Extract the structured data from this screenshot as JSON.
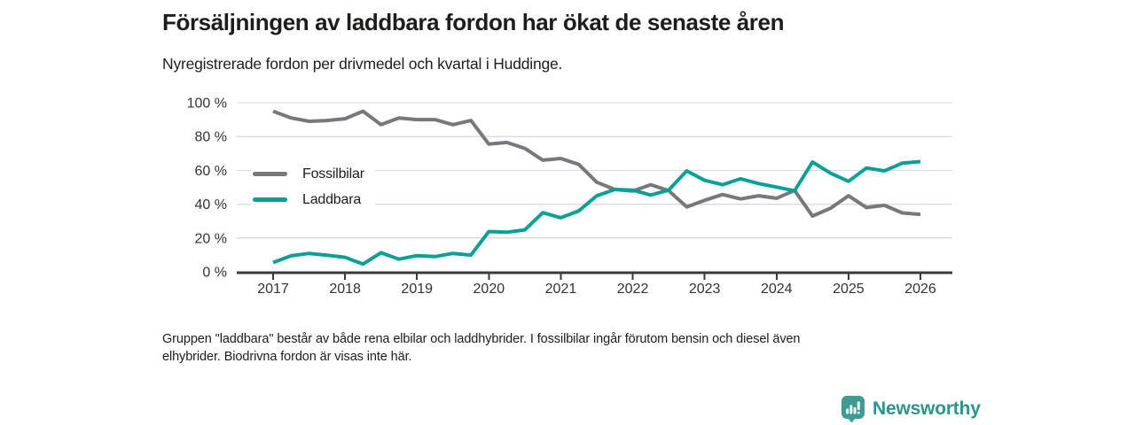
{
  "header": {
    "title": "Försäljningen av laddbara fordon har ökat de senaste åren",
    "subtitle": "Nyregistrerade fordon per drivmedel och kvartal i Huddinge."
  },
  "chart_data": {
    "type": "line",
    "title": "Försäljningen av laddbara fordon har ökat de senaste åren",
    "subtitle": "Nyregistrerade fordon per drivmedel och kvartal i Huddinge.",
    "xlabel": "",
    "ylabel": "",
    "ylim": [
      0,
      100
    ],
    "grid": "horizontal",
    "legend_position": "inside-upper-left",
    "x_tick_labels": [
      "2017",
      "2018",
      "2019",
      "2020",
      "2021",
      "2022",
      "2023",
      "2024",
      "2025",
      "2026"
    ],
    "y_tick_labels": [
      "0 %",
      "20 %",
      "40 %",
      "60 %",
      "80 %",
      "100 %"
    ],
    "quarters": [
      "2017 Q1",
      "2017 Q2",
      "2017 Q3",
      "2017 Q4",
      "2018 Q1",
      "2018 Q2",
      "2018 Q3",
      "2018 Q4",
      "2019 Q1",
      "2019 Q2",
      "2019 Q3",
      "2019 Q4",
      "2020 Q1",
      "2020 Q2",
      "2020 Q3",
      "2020 Q4",
      "2021 Q1",
      "2021 Q2",
      "2021 Q3",
      "2021 Q4",
      "2022 Q1",
      "2022 Q2",
      "2022 Q3",
      "2022 Q4",
      "2023 Q1",
      "2023 Q2",
      "2023 Q3",
      "2023 Q4",
      "2024 Q1",
      "2024 Q2",
      "2024 Q3",
      "2024 Q4",
      "2025 Q1",
      "2025 Q2",
      "2025 Q3",
      "2025 Q4",
      "2026 Q1"
    ],
    "unit": "%",
    "series": [
      {
        "name": "Fossilbilar",
        "color": "#77787b",
        "values": [
          95,
          91,
          89,
          89.5,
          90.5,
          95,
          87,
          91,
          90,
          90,
          87,
          89.5,
          75.5,
          76.5,
          73,
          66,
          67,
          63.5,
          53,
          48.7,
          47.8,
          51.5,
          48,
          38.4,
          42.3,
          45.7,
          43.1,
          45,
          43.5,
          48.1,
          33,
          37.6,
          45,
          38,
          39.3,
          34.8,
          34
        ]
      },
      {
        "name": "Laddbara",
        "color": "#0aa096",
        "values": [
          5.5,
          9.5,
          10.9,
          9.8,
          8.6,
          4.6,
          11.3,
          7.5,
          9.6,
          9,
          10.9,
          9.9,
          23.8,
          23.4,
          24.8,
          35,
          32,
          36,
          45,
          48.7,
          48.3,
          45.4,
          48.3,
          59.7,
          54.1,
          51.5,
          55,
          52.2,
          50.1,
          47.9,
          64.9,
          58.3,
          53.5,
          61.4,
          59.7,
          64.3,
          65.2
        ]
      }
    ],
    "axis_color": "#3b3b3b",
    "gridline_color": "#dcdcdc"
  },
  "footer": {
    "note_line1": "Gruppen \"laddbara\" består av både rena elbilar och laddhybrider. I fossilbilar ingår förutom bensin och diesel även",
    "note_line2": "elhybrider. Biodrivna fordon är visas inte här."
  },
  "branding": {
    "logo_text": "Newsworthy",
    "logo_text_color": "#2f938b",
    "logo_icon_color": "#3f9b94"
  }
}
